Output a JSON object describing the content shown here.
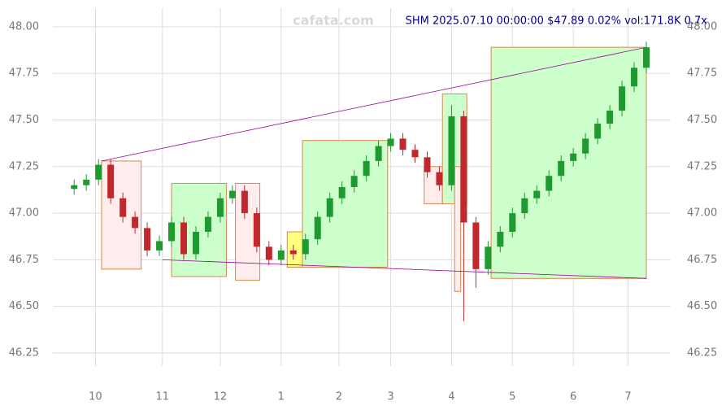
{
  "chart_data": {
    "type": "candlestick",
    "title": "SHM 2025.07.10 00:00:00 $47.89 0.02% vol:171.8K 0.7x",
    "watermark": "cafata.com",
    "up_color": "#1e9a2e",
    "down_color": "#c0282e",
    "grid": true,
    "xlim": [
      -3,
      192
    ],
    "ylim": [
      46.18,
      48.1
    ],
    "xticks": [
      {
        "value": 7,
        "label": "10"
      },
      {
        "value": 29,
        "label": "11"
      },
      {
        "value": 48,
        "label": "12"
      },
      {
        "value": 68,
        "label": "1"
      },
      {
        "value": 87,
        "label": "2"
      },
      {
        "value": 104,
        "label": "3"
      },
      {
        "value": 124,
        "label": "4"
      },
      {
        "value": 144,
        "label": "5"
      },
      {
        "value": 164,
        "label": "6"
      },
      {
        "value": 182,
        "label": "7"
      }
    ],
    "yticks": [
      {
        "value": 46.25,
        "label": "46.25"
      },
      {
        "value": 46.5,
        "label": "46.50"
      },
      {
        "value": 46.75,
        "label": "46.75"
      },
      {
        "value": 47,
        "label": "47.00"
      },
      {
        "value": 47.25,
        "label": "47.25"
      },
      {
        "value": 47.5,
        "label": "47.50"
      },
      {
        "value": 47.75,
        "label": "47.75"
      },
      {
        "value": 48,
        "label": "48.00"
      }
    ],
    "x": [
      0,
      4,
      8,
      12,
      16,
      20,
      24,
      28,
      32,
      36,
      40,
      44,
      48,
      52,
      56,
      60,
      64,
      68,
      72,
      76,
      80,
      84,
      88,
      92,
      96,
      100,
      104,
      108,
      112,
      116,
      120,
      124,
      128,
      132,
      136,
      140,
      144,
      148,
      152,
      156,
      160,
      164,
      168,
      172,
      176,
      180,
      184,
      188
    ],
    "open": [
      47.13,
      47.15,
      47.18,
      47.26,
      47.08,
      46.98,
      46.92,
      46.8,
      46.85,
      46.95,
      46.78,
      46.9,
      46.98,
      47.08,
      47.12,
      47.0,
      46.82,
      46.75,
      46.8,
      46.78,
      46.86,
      46.98,
      47.08,
      47.14,
      47.2,
      47.28,
      47.36,
      47.4,
      47.34,
      47.3,
      47.22,
      47.15,
      47.52,
      46.95,
      46.7,
      46.82,
      46.9,
      47.0,
      47.08,
      47.12,
      47.2,
      47.28,
      47.32,
      47.4,
      47.48,
      47.55,
      47.68,
      47.78
    ],
    "high": [
      47.18,
      47.21,
      47.29,
      47.29,
      47.11,
      47.01,
      46.95,
      46.88,
      46.98,
      46.98,
      46.93,
      47.01,
      47.11,
      47.15,
      47.15,
      47.03,
      46.85,
      46.83,
      46.83,
      46.89,
      47.01,
      47.11,
      47.17,
      47.23,
      47.31,
      47.39,
      47.43,
      47.43,
      47.37,
      47.33,
      47.25,
      47.58,
      47.55,
      46.98,
      46.85,
      46.93,
      47.03,
      47.11,
      47.15,
      47.23,
      47.31,
      47.35,
      47.43,
      47.51,
      47.58,
      47.71,
      47.81,
      47.92
    ],
    "low": [
      47.1,
      47.12,
      47.15,
      47.05,
      46.95,
      46.89,
      46.77,
      46.77,
      46.82,
      46.75,
      46.75,
      46.87,
      46.95,
      47.05,
      46.97,
      46.79,
      46.72,
      46.72,
      46.75,
      46.75,
      46.83,
      46.95,
      47.05,
      47.11,
      47.17,
      47.25,
      47.33,
      47.31,
      47.27,
      47.19,
      47.12,
      47.12,
      46.42,
      46.6,
      46.67,
      46.79,
      46.87,
      46.97,
      47.05,
      47.09,
      47.17,
      47.25,
      47.29,
      47.37,
      47.45,
      47.52,
      47.65,
      47.75
    ],
    "close": [
      47.15,
      47.18,
      47.26,
      47.08,
      46.98,
      46.92,
      46.8,
      46.85,
      46.95,
      46.78,
      46.9,
      46.98,
      47.08,
      47.12,
      47.0,
      46.82,
      46.75,
      46.8,
      46.78,
      46.86,
      46.98,
      47.08,
      47.14,
      47.2,
      47.28,
      47.36,
      47.4,
      47.34,
      47.3,
      47.22,
      47.15,
      47.52,
      46.95,
      46.7,
      46.82,
      46.9,
      47.0,
      47.08,
      47.12,
      47.2,
      47.28,
      47.32,
      47.4,
      47.48,
      47.55,
      47.68,
      47.78,
      47.89
    ],
    "zones": [
      {
        "x": [
          9,
          22
        ],
        "y": [
          46.7,
          47.28
        ],
        "color": "#ffecec"
      },
      {
        "x": [
          32,
          50
        ],
        "y": [
          46.66,
          47.16
        ],
        "color": "#ccffcc"
      },
      {
        "x": [
          53,
          61
        ],
        "y": [
          46.64,
          47.16
        ],
        "color": "#ffecec"
      },
      {
        "x": [
          70,
          75
        ],
        "y": [
          46.71,
          46.9
        ],
        "color": "#ffff80"
      },
      {
        "x": [
          75,
          103
        ],
        "y": [
          46.71,
          47.39
        ],
        "color": "#ccffcc"
      },
      {
        "x": [
          115,
          121
        ],
        "y": [
          47.05,
          47.25
        ],
        "color": "#ffecec"
      },
      {
        "x": [
          121,
          129
        ],
        "y": [
          47.05,
          47.64
        ],
        "color": "#ccffcc"
      },
      {
        "x": [
          125,
          127
        ],
        "y": [
          46.58,
          47.25
        ],
        "color": "#ffecec"
      },
      {
        "x": [
          137,
          188
        ],
        "y": [
          46.65,
          47.89
        ],
        "color": "#ccffcc"
      }
    ],
    "lines": [
      {
        "x": [
          9,
          188
        ],
        "y": [
          47.28,
          47.89
        ],
        "color": "#990099"
      },
      {
        "x": [
          29,
          188
        ],
        "y": [
          46.75,
          46.65
        ],
        "color": "#990099"
      }
    ]
  }
}
